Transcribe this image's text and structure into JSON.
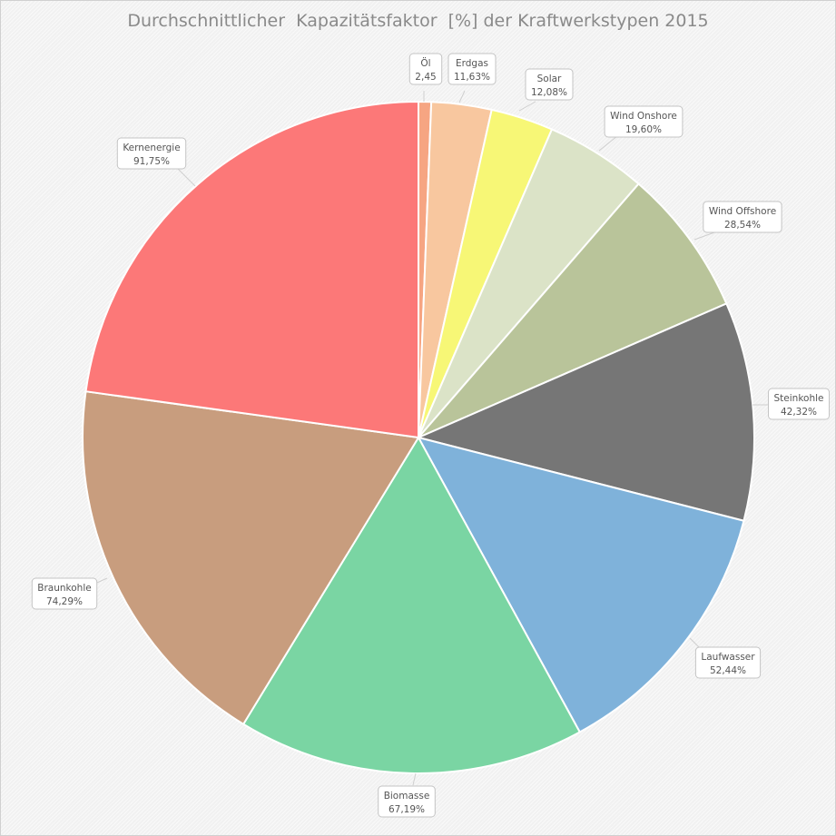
{
  "chart_data": {
    "type": "pie",
    "title": "Durchschnittlicher  Kapazitätsfaktor  [%] der Kraftwerkstypen 2015",
    "slices": [
      {
        "name": "Öl",
        "value": 2.45,
        "label": "2,45",
        "color": "#f6a582"
      },
      {
        "name": "Erdgas",
        "value": 11.63,
        "label": "11,63%",
        "color": "#f8c79f"
      },
      {
        "name": "Solar",
        "value": 12.08,
        "label": "12,08%",
        "color": "#f7f776"
      },
      {
        "name": "Wind Onshore",
        "value": 19.6,
        "label": "19,60%",
        "color": "#dbe3c7"
      },
      {
        "name": "Wind Offshore",
        "value": 28.54,
        "label": "28,54%",
        "color": "#b9c49a"
      },
      {
        "name": "Steinkohle",
        "value": 42.32,
        "label": "42,32%",
        "color": "#767676"
      },
      {
        "name": "Laufwasser",
        "value": 52.44,
        "label": "52,44%",
        "color": "#7fb2da"
      },
      {
        "name": "Biomasse",
        "value": 67.19,
        "label": "67,19%",
        "color": "#7ad5a3"
      },
      {
        "name": "Braunkohle",
        "value": 74.29,
        "label": "74,29%",
        "color": "#c89d7e"
      },
      {
        "name": "Kernenergie",
        "value": 91.75,
        "label": "91,75%",
        "color": "#fc7878"
      }
    ],
    "start_angle_deg": 0,
    "direction": "clockwise",
    "legend": "none",
    "data_labels": "callouts"
  }
}
